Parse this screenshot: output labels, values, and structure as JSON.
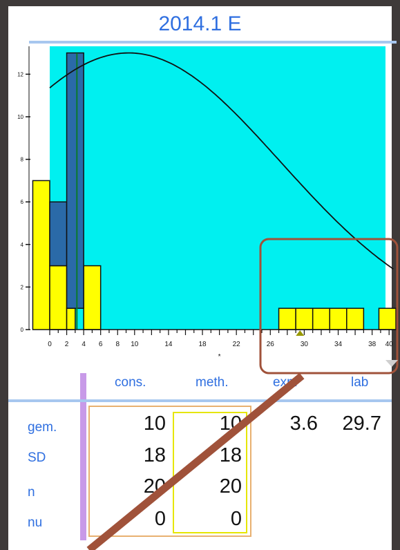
{
  "title": "2014.1 E",
  "chart_data": {
    "type": "bar",
    "x_ticks": [
      0,
      2,
      4,
      6,
      8,
      10,
      14,
      18,
      22,
      26,
      30,
      34,
      38,
      40
    ],
    "y_ticks": [
      0,
      2,
      4,
      6,
      8,
      10,
      12
    ],
    "xlim": [
      0,
      41
    ],
    "ylim": [
      0,
      13.5
    ],
    "x_axis_marker": "*",
    "series": [
      {
        "color": "#ffff00",
        "bars": [
          {
            "x0": -2,
            "x1": 0,
            "y": 7
          },
          {
            "x0": 0,
            "x1": 2,
            "y": 3
          },
          {
            "x0": 2,
            "x1": 3,
            "y": 1
          },
          {
            "x0": 4,
            "x1": 6,
            "y": 3
          },
          {
            "x0": 27,
            "x1": 29,
            "y": 1
          },
          {
            "x0": 29,
            "x1": 31,
            "y": 1
          },
          {
            "x0": 31,
            "x1": 33,
            "y": 1
          },
          {
            "x0": 33,
            "x1": 35,
            "y": 1
          },
          {
            "x0": 35,
            "x1": 37,
            "y": 1
          },
          {
            "x0": 38.8,
            "x1": 40.8,
            "y": 1
          }
        ]
      },
      {
        "color": "#2a6aa8",
        "bars": [
          {
            "x0": 0,
            "x1": 2,
            "y": 6,
            "base": 3
          },
          {
            "x0": 2,
            "x1": 4,
            "y": 13,
            "base": 1
          }
        ]
      }
    ],
    "curve": {
      "type": "normal",
      "mean": 9.3,
      "sd": 17.9,
      "peak": 13
    },
    "vertical_line_x": 3.2,
    "background": "#00f0f0"
  },
  "table": {
    "columns": [
      "cons.",
      "meth.",
      "exp.",
      "lab"
    ],
    "rows": [
      {
        "label": "gem.",
        "values": [
          "10",
          "10",
          "3.6",
          "29.7"
        ]
      },
      {
        "label": "SD",
        "values": [
          "18",
          "18",
          "",
          ""
        ]
      },
      {
        "label": "n",
        "values": [
          "20",
          "20",
          "",
          ""
        ]
      },
      {
        "label": "nu",
        "values": [
          "0",
          "0",
          "",
          ""
        ]
      }
    ]
  },
  "colors": {
    "accent": "#2f6fe0",
    "plot_bg": "#00f0f0",
    "highlight": "#a0523a",
    "marker": "#999900"
  }
}
